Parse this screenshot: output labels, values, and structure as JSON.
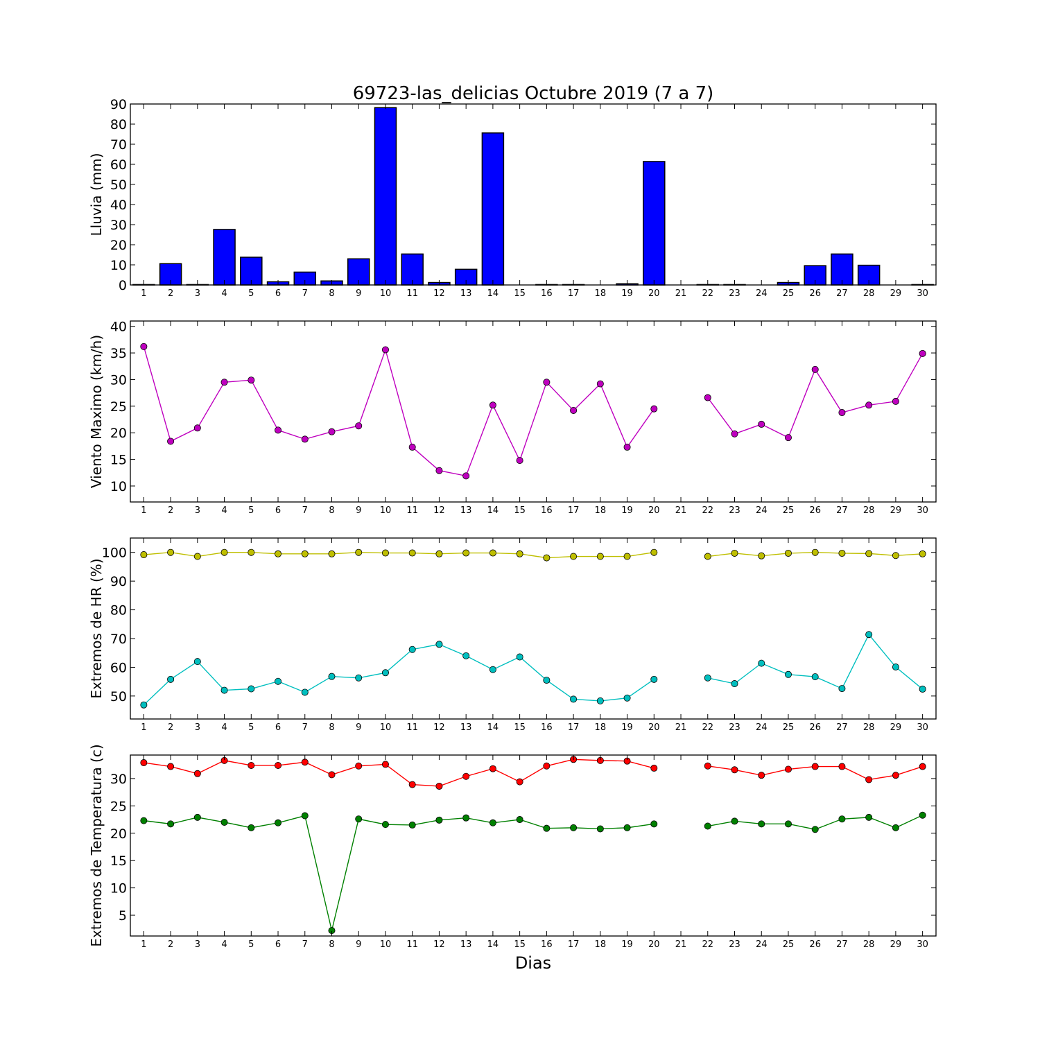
{
  "figure": {
    "title": "69723-las_delicias Octubre 2019  (7 a 7)",
    "xlabel": "Dias"
  },
  "chart_data": [
    {
      "type": "bar",
      "ylabel": "Lluvia (mm)",
      "x": [
        1,
        2,
        3,
        4,
        5,
        6,
        7,
        8,
        9,
        10,
        11,
        12,
        13,
        14,
        15,
        16,
        17,
        18,
        19,
        20,
        21,
        22,
        23,
        24,
        25,
        26,
        27,
        28,
        29,
        30
      ],
      "ylim": [
        0,
        90
      ],
      "yticks": [
        0,
        10,
        20,
        30,
        40,
        50,
        60,
        70,
        80,
        90
      ],
      "grid": false,
      "series": [
        {
          "color": "#0000ff",
          "values": [
            0.2,
            10.6,
            0.2,
            27.6,
            13.8,
            1.6,
            6.4,
            2.0,
            13.0,
            88.2,
            15.4,
            1.2,
            7.8,
            75.6,
            0,
            0.2,
            0.2,
            0,
            0.6,
            61.4,
            0,
            0.2,
            0.2,
            0,
            1.2,
            9.6,
            15.4,
            9.8,
            0,
            0.2
          ]
        }
      ]
    },
    {
      "type": "line",
      "ylabel": "Viento Maximo (km/h)",
      "x": [
        1,
        2,
        3,
        4,
        5,
        6,
        7,
        8,
        9,
        10,
        11,
        12,
        13,
        14,
        15,
        16,
        17,
        18,
        19,
        20,
        21,
        22,
        23,
        24,
        25,
        26,
        27,
        28,
        29,
        30
      ],
      "ylim": [
        7,
        41
      ],
      "yticks": [
        10,
        15,
        20,
        25,
        30,
        35,
        40
      ],
      "grid": false,
      "series": [
        {
          "color": "#bf00bf",
          "values": [
            36.2,
            18.4,
            20.9,
            29.5,
            29.9,
            20.5,
            18.8,
            20.2,
            21.3,
            35.6,
            17.3,
            12.9,
            11.9,
            25.2,
            14.8,
            29.5,
            24.2,
            29.2,
            17.3,
            24.5,
            null,
            26.6,
            19.8,
            21.6,
            19.1,
            31.9,
            23.8,
            25.2,
            25.9,
            34.9
          ]
        }
      ]
    },
    {
      "type": "line",
      "ylabel": "Extremos de HR (%)",
      "x": [
        1,
        2,
        3,
        4,
        5,
        6,
        7,
        8,
        9,
        10,
        11,
        12,
        13,
        14,
        15,
        16,
        17,
        18,
        19,
        20,
        21,
        22,
        23,
        24,
        25,
        26,
        27,
        28,
        29,
        30
      ],
      "ylim": [
        42,
        105
      ],
      "yticks": [
        50,
        60,
        70,
        80,
        90,
        100
      ],
      "grid": false,
      "series": [
        {
          "color": "#bfbf00",
          "values": [
            99.2,
            100,
            98.6,
            100,
            100,
            99.5,
            99.5,
            99.5,
            100,
            99.8,
            99.8,
            99.5,
            99.8,
            99.8,
            99.5,
            98.1,
            98.6,
            98.6,
            98.6,
            100,
            null,
            98.6,
            99.7,
            98.8,
            99.7,
            100,
            99.7,
            99.6,
            98.9,
            99.5
          ]
        },
        {
          "color": "#00bfbf",
          "values": [
            46.9,
            55.8,
            62.0,
            52.0,
            52.5,
            55.1,
            51.3,
            56.8,
            56.3,
            58.1,
            66.2,
            68.0,
            64.0,
            59.2,
            63.6,
            55.5,
            48.9,
            48.3,
            49.3,
            55.8,
            null,
            56.3,
            54.3,
            61.4,
            57.5,
            56.7,
            52.6,
            71.4,
            60.1,
            52.4
          ]
        }
      ]
    },
    {
      "type": "line",
      "ylabel": "Extremos de Temperatura (c)",
      "x": [
        1,
        2,
        3,
        4,
        5,
        6,
        7,
        8,
        9,
        10,
        11,
        12,
        13,
        14,
        15,
        16,
        17,
        18,
        19,
        20,
        21,
        22,
        23,
        24,
        25,
        26,
        27,
        28,
        29,
        30
      ],
      "ylim": [
        1.2,
        34.3
      ],
      "yticks": [
        5,
        10,
        15,
        20,
        25,
        30
      ],
      "grid": false,
      "series": [
        {
          "color": "#ff0000",
          "values": [
            32.9,
            32.2,
            30.9,
            33.3,
            32.4,
            32.4,
            33.0,
            30.7,
            32.3,
            32.6,
            28.9,
            28.6,
            30.4,
            31.8,
            29.4,
            32.3,
            33.5,
            33.3,
            33.2,
            31.9,
            null,
            32.3,
            31.6,
            30.6,
            31.7,
            32.2,
            32.2,
            29.8,
            30.6,
            32.2
          ]
        },
        {
          "color": "#008000",
          "values": [
            22.3,
            21.7,
            22.9,
            22.0,
            21.0,
            21.9,
            23.2,
            2.2,
            22.6,
            21.6,
            21.5,
            22.4,
            22.8,
            21.9,
            22.5,
            20.9,
            21.0,
            20.8,
            21.0,
            21.7,
            null,
            21.3,
            22.2,
            21.7,
            21.7,
            20.7,
            22.6,
            22.9,
            21.0,
            23.3
          ]
        }
      ]
    }
  ]
}
